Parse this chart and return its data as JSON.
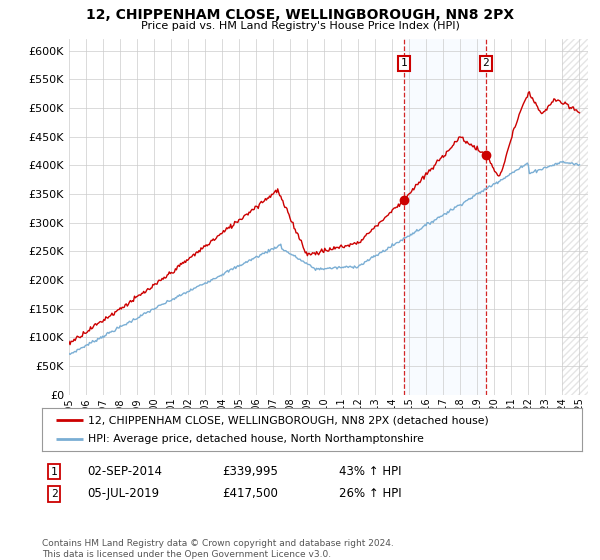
{
  "title": "12, CHIPPENHAM CLOSE, WELLINGBOROUGH, NN8 2PX",
  "subtitle": "Price paid vs. HM Land Registry's House Price Index (HPI)",
  "ylim": [
    0,
    620000
  ],
  "ytick_values": [
    0,
    50000,
    100000,
    150000,
    200000,
    250000,
    300000,
    350000,
    400000,
    450000,
    500000,
    550000,
    600000
  ],
  "hpi_color": "#7aaed4",
  "price_color": "#cc0000",
  "annotation_color": "#cc0000",
  "bg_color": "#ffffff",
  "grid_color": "#cccccc",
  "legend_label_price": "12, CHIPPENHAM CLOSE, WELLINGBOROUGH, NN8 2PX (detached house)",
  "legend_label_hpi": "HPI: Average price, detached house, North Northamptonshire",
  "event1_date": "02-SEP-2014",
  "event1_price": "£339,995",
  "event1_hpi": "43% ↑ HPI",
  "event1_x": 2014.67,
  "event1_y": 339995,
  "event2_date": "05-JUL-2019",
  "event2_price": "£417,500",
  "event2_hpi": "26% ↑ HPI",
  "event2_x": 2019.5,
  "event2_y": 417500,
  "footer": "Contains HM Land Registry data © Crown copyright and database right 2024.\nThis data is licensed under the Open Government Licence v3.0.",
  "shaded_color": "#ddeeff",
  "note_color": "#555555",
  "xmin": 1995,
  "xmax": 2025.5,
  "hatch_start": 2024.0
}
